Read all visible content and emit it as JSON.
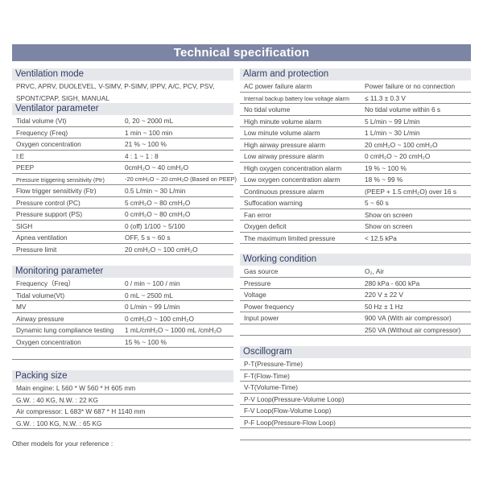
{
  "title": "Technical specification",
  "left": [
    {
      "header": "Ventilation mode",
      "plain": true,
      "rows": [
        [
          "PRVC, APRV, DUOLEVEL, V-SIMV, P-SIMV, IPPV, A/C, PCV, PSV,",
          ""
        ],
        [
          "SPONT/CPAP, SIGH, MANUAL",
          ""
        ]
      ]
    },
    {
      "header": "Ventilator parameter",
      "rows": [
        [
          "Tidal volume (Vt)",
          "0, 20 ~ 2000 mL"
        ],
        [
          "Frequency (Freq)",
          "1 min ~ 100 min"
        ],
        [
          "Oxygen concentration",
          "21 % ~ 100 %"
        ],
        [
          "I:E",
          "4 : 1 ~ 1 : 8"
        ],
        [
          "PEEP",
          "0cmH₂O ~ 40 cmH₂O"
        ],
        [
          "Pressure triggering sensitivity (Ptr)",
          "-20 cmH₂O ~ 20 cmH₂O (Based on PEEP)"
        ],
        [
          "Flow trigger sensitivity (Ftr)",
          "0.5 L/min ~ 30 L/min"
        ],
        [
          "Pressure control (PC)",
          "5 cmH₂O ~ 80 cmH₂O"
        ],
        [
          "Pressure support (PS)",
          "0 cmH₂O ~ 80 cmH₂O"
        ],
        [
          "SIGH",
          "0 (off)  1/100 ~ 5/100"
        ],
        [
          "Apnea ventilation",
          "OFF, 5 s ~ 60 s"
        ],
        [
          "Pressure limit",
          "20 cmH₂O ~ 100 cmH₂O"
        ]
      ]
    },
    {
      "header": "Monitoring parameter",
      "rows": [
        [
          "Frequency（Freq）",
          "0 / min ~ 100 / min"
        ],
        [
          "Tidal volume(Vt)",
          "0 mL ~ 2500 mL"
        ],
        [
          "MV",
          "0 L/min ~ 99 L/min"
        ],
        [
          "Airway pressure",
          "0 cmH₂O ~ 100 cmH₂O"
        ],
        [
          "Dynamic lung compliance testing",
          "1 mL/cmH₂O ~ 1000 mL /cmH₂O"
        ],
        [
          "Oxygen concentration",
          "15 % ~ 100 %"
        ],
        [
          "",
          ""
        ]
      ]
    },
    {
      "header": "Packing size",
      "rows": [
        [
          "Main engine: L 560 * W 560 * H 605 mm",
          ""
        ],
        [
          "G.W. : 40 KG,  N.W. : 22 KG",
          ""
        ],
        [
          "Air compressor: L 683* W 687 * H 1140 mm",
          ""
        ],
        [
          "G.W. : 100 KG,  N.W. : 65 KG",
          ""
        ]
      ]
    }
  ],
  "right": [
    {
      "header": "Alarm and protection",
      "rows": [
        [
          "AC power failure alarm",
          "Power failure or no connection"
        ],
        [
          "Internal backup battery low voltage alarm",
          "≤ 11.3 ± 0.3 V"
        ],
        [
          "No tidal volume",
          "No tidal volume within 6 s"
        ],
        [
          "High minute volume alarm",
          "5 L/min ~ 99 L/min"
        ],
        [
          "Low minute volume alarm",
          "1 L/min ~ 30 L/min"
        ],
        [
          "High airway pressure alarm",
          "20 cmH₂O ~ 100 cmH₂O"
        ],
        [
          "Low airway pressure alarm",
          "0 cmH₂O ~ 20 cmH₂O"
        ],
        [
          "High oxygen concentration alarm",
          "19 % ~ 100 %"
        ],
        [
          "Low oxygen concentration alarm",
          "18 % ~ 99 %"
        ],
        [
          "Continuous pressure alarm",
          "(PEEP + 1.5 cmH₂O) over 16 s"
        ],
        [
          "Suffocation warning",
          "5 ~ 60 s"
        ],
        [
          "Fan error",
          "Show on screen"
        ],
        [
          "Oxygen deficit",
          "Show on screen"
        ],
        [
          "The maximum limited pressure",
          "< 12.5 kPa"
        ]
      ]
    },
    {
      "header": "Working condition",
      "rows": [
        [
          "Gas source",
          "O₂, Air"
        ],
        [
          "Pressure",
          "280 kPa - 600 kPa"
        ],
        [
          "Voltage",
          "220 V ± 22 V"
        ],
        [
          "Power frequency",
          "50 Hz ± 1 Hz"
        ],
        [
          "Input power",
          "900 VA (With air compressor)"
        ],
        [
          "",
          "250 VA (Without air compressor)"
        ]
      ]
    },
    {
      "header": "Oscillogram",
      "rows": [
        [
          "P-T(Pressure-Time)",
          ""
        ],
        [
          "F-T(Flow-Time)",
          ""
        ],
        [
          "V-T(Volume-Time)",
          ""
        ],
        [
          "P-V Loop(Pressure-Volume Loop)",
          ""
        ],
        [
          "F-V Loop(Flow-Volume Loop)",
          ""
        ],
        [
          "P-F Loop(Pressure-Flow Loop)",
          ""
        ],
        [
          "",
          ""
        ]
      ]
    }
  ],
  "footer_note": "Other models for your reference :",
  "colors": {
    "title_bar": "#7c86a4",
    "section_header_bg": "#e6e7ea",
    "section_header_text": "#2f3d66"
  }
}
